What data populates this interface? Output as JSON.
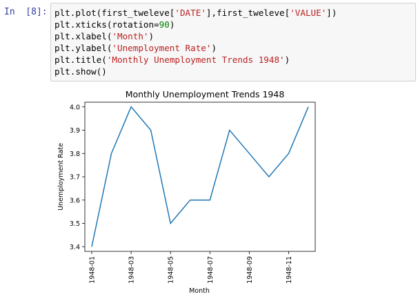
{
  "notebook": {
    "prompt": "In  [8]:",
    "code_lines": [
      [
        {
          "t": "plt.plot(first_tweleve["
        },
        {
          "t": "'DATE'",
          "c": "str"
        },
        {
          "t": "],first_tweleve["
        },
        {
          "t": "'VALUE'",
          "c": "str"
        },
        {
          "t": "])"
        }
      ],
      [
        {
          "t": "plt.xticks(rotation="
        },
        {
          "t": "90",
          "c": "num"
        },
        {
          "t": ")"
        }
      ],
      [
        {
          "t": "plt.xlabel("
        },
        {
          "t": "'Month'",
          "c": "str"
        },
        {
          "t": ")"
        }
      ],
      [
        {
          "t": "plt.ylabel("
        },
        {
          "t": "'Unemployment Rate'",
          "c": "str"
        },
        {
          "t": ")"
        }
      ],
      [
        {
          "t": "plt.title("
        },
        {
          "t": "'Monthly Unemployment Trends 1948'",
          "c": "str"
        },
        {
          "t": ")"
        }
      ],
      [
        {
          "t": "plt.show()"
        }
      ]
    ],
    "colors": {
      "prompt": "#303f9f",
      "string": "#ba2121",
      "number": "#008000",
      "line": "#1f77b4"
    }
  },
  "chart_data": {
    "type": "line",
    "title": "Monthly Unemployment Trends 1948",
    "xlabel": "Month",
    "ylabel": "Unemployment Rate",
    "x": [
      "1948-01",
      "1948-02",
      "1948-03",
      "1948-04",
      "1948-05",
      "1948-06",
      "1948-07",
      "1948-08",
      "1948-09",
      "1948-10",
      "1948-11",
      "1948-12"
    ],
    "values": [
      3.4,
      3.8,
      4.0,
      3.9,
      3.5,
      3.6,
      3.6,
      3.9,
      3.8,
      3.7,
      3.8,
      4.0
    ],
    "xticks": [
      "1948-01",
      "1948-03",
      "1948-05",
      "1948-07",
      "1948-09",
      "1948-11"
    ],
    "yticks": [
      "3.4",
      "3.5",
      "3.6",
      "3.7",
      "3.8",
      "3.9",
      "4.0"
    ],
    "ylim": [
      3.38,
      4.02
    ],
    "grid": false,
    "xtick_rotation": 90
  }
}
